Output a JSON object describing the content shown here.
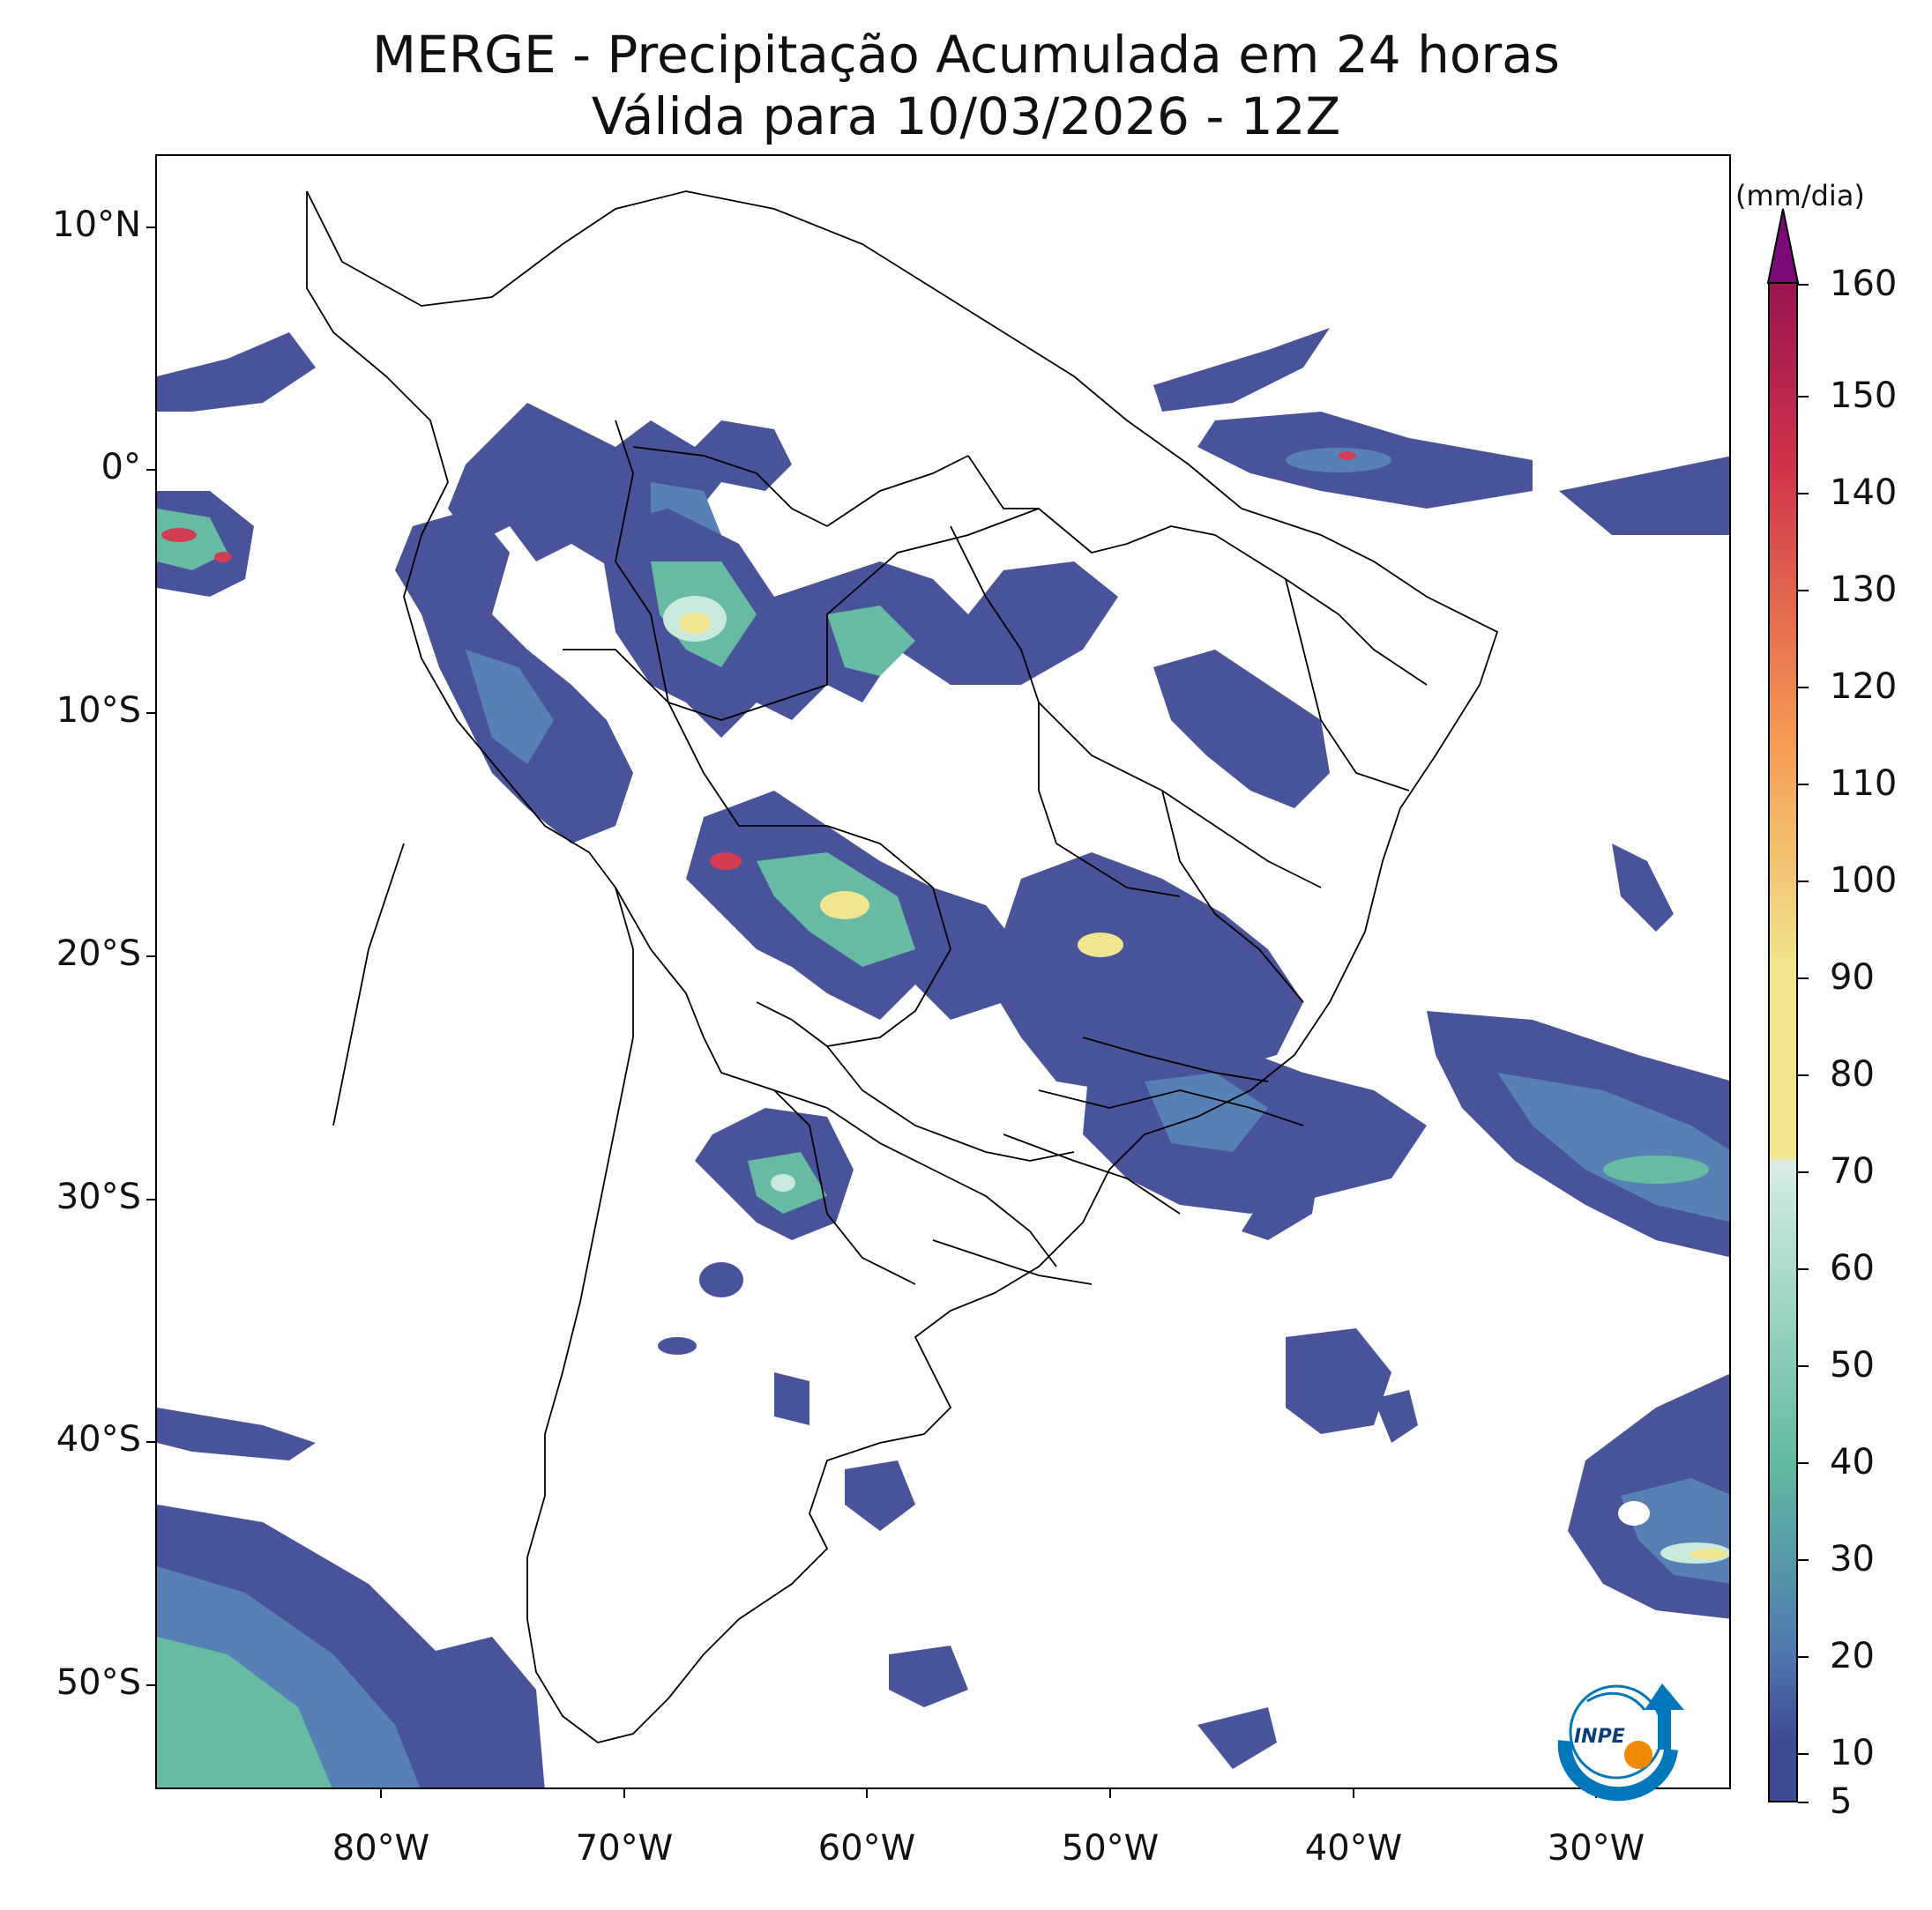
{
  "title": {
    "line1": "MERGE - Precipitação Acumulada em 24 horas",
    "line2": "Válida para 10/03/2026 - 12Z"
  },
  "map": {
    "lat_labels": [
      "10°N",
      "0°",
      "10°S",
      "20°S",
      "30°S",
      "40°S",
      "50°S"
    ],
    "lon_labels": [
      "80°W",
      "70°W",
      "60°W",
      "50°W",
      "40°W",
      "30°W"
    ]
  },
  "colorbar": {
    "unit": "(mm/dia)",
    "ticks": [
      "5",
      "10",
      "20",
      "30",
      "40",
      "50",
      "60",
      "70",
      "80",
      "90",
      "100",
      "110",
      "120",
      "130",
      "140",
      "150",
      "160"
    ],
    "extend": "max",
    "colors": {
      "low": "#3f4a94",
      "mid_low": "#4f7ab0",
      "mid": "#5fb8a0",
      "mid_high": "#c8e8dc",
      "yellow": "#f0e58c",
      "orange": "#f59a52",
      "red": "#d0334a",
      "top": "#9b1450",
      "extend": "#7a0a78"
    }
  },
  "logo": {
    "text": "INPE"
  }
}
